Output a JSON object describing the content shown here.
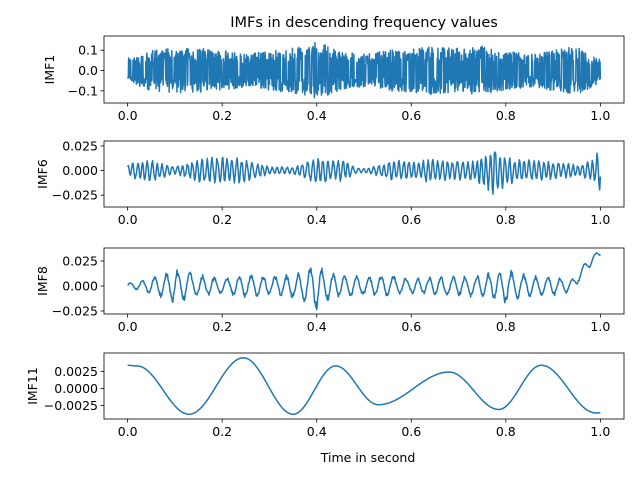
{
  "figure": {
    "title": "IMFs in descending frequency values",
    "line_color": "#1f77b4"
  },
  "chart_data": [
    {
      "type": "line",
      "ylabel": "IMF1",
      "xlabel": "",
      "xlim": [
        -0.05,
        1.05
      ],
      "ylim": [
        -0.16,
        0.17
      ],
      "xticks": [
        0.0,
        0.2,
        0.4,
        0.6,
        0.8,
        1.0
      ],
      "xtick_labels": [
        "0.0",
        "0.2",
        "0.4",
        "0.6",
        "0.8",
        "1.0"
      ],
      "yticks": [
        0.1,
        0.0,
        -0.1
      ],
      "ytick_labels": [
        "0.1",
        "0.0",
        "−0.1"
      ],
      "series": [
        {
          "style": "noise",
          "x_range": [
            0.0,
            1.0
          ],
          "n": 1400,
          "envelope": [
            [
              0.0,
              0.06
            ],
            [
              0.05,
              0.1
            ],
            [
              0.1,
              0.11
            ],
            [
              0.15,
              0.11
            ],
            [
              0.2,
              0.1
            ],
            [
              0.25,
              0.08
            ],
            [
              0.3,
              0.1
            ],
            [
              0.35,
              0.11
            ],
            [
              0.4,
              0.14
            ],
            [
              0.45,
              0.1
            ],
            [
              0.5,
              0.08
            ],
            [
              0.55,
              0.1
            ],
            [
              0.6,
              0.11
            ],
            [
              0.65,
              0.12
            ],
            [
              0.7,
              0.11
            ],
            [
              0.75,
              0.12
            ],
            [
              0.8,
              0.1
            ],
            [
              0.85,
              0.08
            ],
            [
              0.9,
              0.1
            ],
            [
              0.95,
              0.12
            ],
            [
              1.0,
              0.06
            ]
          ]
        }
      ]
    },
    {
      "type": "line",
      "ylabel": "IMF6",
      "xlabel": "",
      "xlim": [
        -0.05,
        1.05
      ],
      "ylim": [
        -0.037,
        0.03
      ],
      "xticks": [
        0.0,
        0.2,
        0.4,
        0.6,
        0.8,
        1.0
      ],
      "xtick_labels": [
        "0.0",
        "0.2",
        "0.4",
        "0.6",
        "0.8",
        "1.0"
      ],
      "yticks": [
        0.025,
        0.0,
        -0.025
      ],
      "ytick_labels": [
        "0.025",
        "0.000",
        "−0.025"
      ],
      "series": [
        {
          "style": "packet",
          "x_range": [
            0.0,
            1.0
          ],
          "n": 700,
          "freq": 95,
          "envelope": [
            [
              0.0,
              0.006
            ],
            [
              0.02,
              0.01
            ],
            [
              0.05,
              0.012
            ],
            [
              0.1,
              0.004
            ],
            [
              0.15,
              0.012
            ],
            [
              0.2,
              0.016
            ],
            [
              0.25,
              0.012
            ],
            [
              0.3,
              0.004
            ],
            [
              0.35,
              0.004
            ],
            [
              0.4,
              0.014
            ],
            [
              0.45,
              0.012
            ],
            [
              0.48,
              0.004
            ],
            [
              0.5,
              0.002
            ],
            [
              0.52,
              0.004
            ],
            [
              0.55,
              0.01
            ],
            [
              0.6,
              0.011
            ],
            [
              0.65,
              0.012
            ],
            [
              0.7,
              0.01
            ],
            [
              0.73,
              0.01
            ],
            [
              0.76,
              0.02
            ],
            [
              0.775,
              0.032
            ],
            [
              0.79,
              0.02
            ],
            [
              0.82,
              0.012
            ],
            [
              0.85,
              0.012
            ],
            [
              0.9,
              0.01
            ],
            [
              0.95,
              0.006
            ],
            [
              0.98,
              0.01
            ],
            [
              1.0,
              0.022
            ]
          ]
        }
      ]
    },
    {
      "type": "line",
      "ylabel": "IMF8",
      "xlabel": "",
      "xlim": [
        -0.05,
        1.05
      ],
      "ylim": [
        -0.028,
        0.038
      ],
      "xticks": [
        0.0,
        0.2,
        0.4,
        0.6,
        0.8,
        1.0
      ],
      "xtick_labels": [
        "0.0",
        "0.2",
        "0.4",
        "0.6",
        "0.8",
        "1.0"
      ],
      "yticks": [
        0.025,
        0.0,
        -0.025
      ],
      "ytick_labels": [
        "0.025",
        "0.000",
        "−0.025"
      ],
      "series": [
        {
          "style": "packet",
          "x_range": [
            0.0,
            1.0
          ],
          "n": 900,
          "freq": 40,
          "envelope": [
            [
              0.0,
              0.003
            ],
            [
              0.05,
              0.008
            ],
            [
              0.1,
              0.018
            ],
            [
              0.15,
              0.012
            ],
            [
              0.2,
              0.008
            ],
            [
              0.25,
              0.012
            ],
            [
              0.3,
              0.01
            ],
            [
              0.35,
              0.012
            ],
            [
              0.38,
              0.018
            ],
            [
              0.4,
              0.025
            ],
            [
              0.42,
              0.016
            ],
            [
              0.45,
              0.012
            ],
            [
              0.5,
              0.01
            ],
            [
              0.55,
              0.012
            ],
            [
              0.6,
              0.008
            ],
            [
              0.65,
              0.01
            ],
            [
              0.7,
              0.01
            ],
            [
              0.75,
              0.012
            ],
            [
              0.8,
              0.018
            ],
            [
              0.85,
              0.012
            ],
            [
              0.9,
              0.01
            ],
            [
              0.95,
              0.006
            ],
            [
              1.0,
              0.004
            ]
          ],
          "trend": [
            [
              0.0,
              0.0
            ],
            [
              0.94,
              0.0
            ],
            [
              0.97,
              0.02
            ],
            [
              1.0,
              0.034
            ]
          ]
        }
      ]
    },
    {
      "type": "line",
      "ylabel": "IMF11",
      "xlabel": "Time in second",
      "xlim": [
        -0.05,
        1.05
      ],
      "ylim": [
        -0.0045,
        0.0052
      ],
      "xticks": [
        0.0,
        0.2,
        0.4,
        0.6,
        0.8,
        1.0
      ],
      "xtick_labels": [
        "0.0",
        "0.2",
        "0.4",
        "0.6",
        "0.8",
        "1.0"
      ],
      "yticks": [
        0.0025,
        0.0,
        -0.0025
      ],
      "ytick_labels": [
        "0.0025",
        "0.0000",
        "−0.0025"
      ],
      "series": [
        {
          "style": "smooth",
          "x": [
            0.0,
            0.02,
            0.13,
            0.245,
            0.35,
            0.44,
            0.53,
            0.68,
            0.785,
            0.875,
            0.99,
            1.0
          ],
          "y": [
            0.0034,
            0.0033,
            -0.0038,
            0.0045,
            -0.0038,
            0.0033,
            -0.0024,
            0.0024,
            -0.0031,
            0.0034,
            -0.0036,
            -0.0036
          ]
        }
      ]
    }
  ]
}
